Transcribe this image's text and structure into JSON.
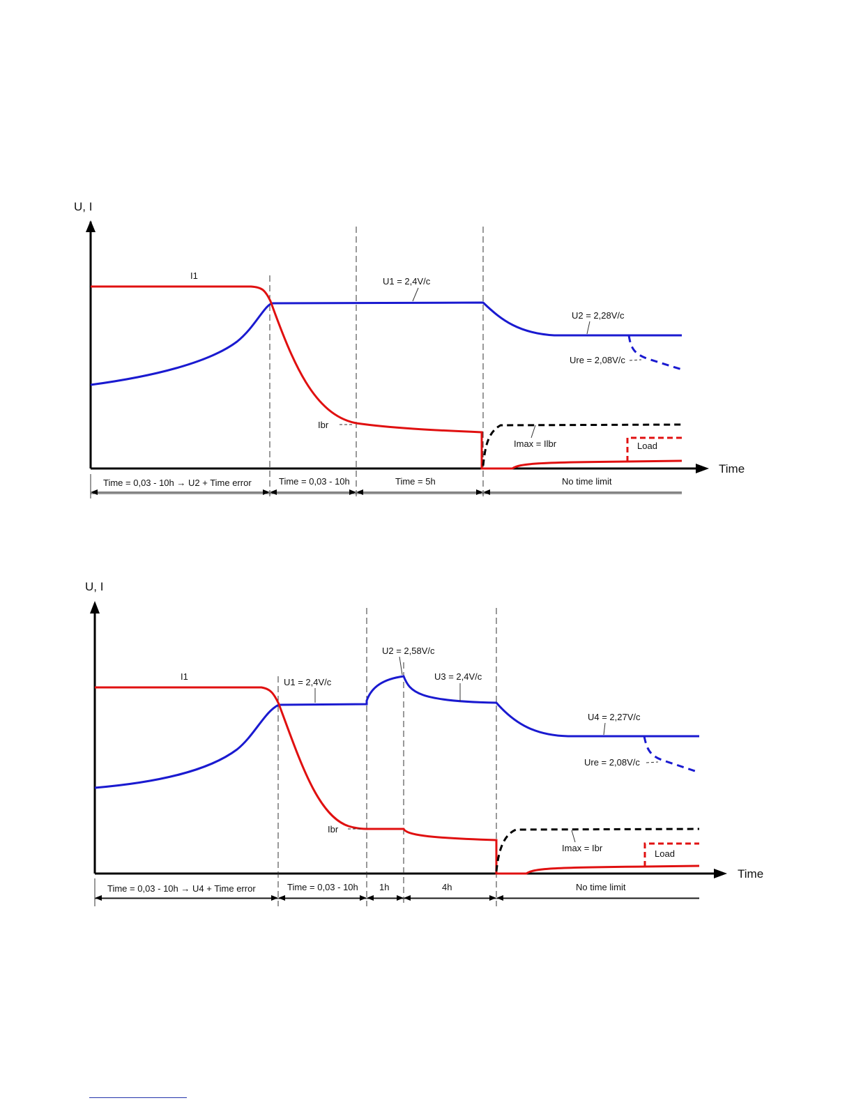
{
  "colors": {
    "current": "#e01010",
    "voltage": "#1a1ad0",
    "limit": "#000000",
    "axis": "#000000"
  },
  "diagram1": {
    "y_axis_label": "U, I",
    "x_axis_label": "Time",
    "labels": {
      "i1": "I1",
      "u1": "U1 = 2,4V/c",
      "u2": "U2 = 2,28V/c",
      "ure": "Ure = 2,08V/c",
      "ibr": "Ibr",
      "imax": "Imax = Ilbr",
      "load": "Load"
    },
    "phases": [
      "Time = 0,03 - 10h  →  U2 + Time error",
      "Time = 0,03 - 10h",
      "Time = 5h",
      "No time limit"
    ]
  },
  "diagram2": {
    "y_axis_label": "U, I",
    "x_axis_label": "Time",
    "labels": {
      "i1": "I1",
      "u1": "U1 = 2,4V/c",
      "u2": "U2 = 2,58V/c",
      "u3": "U3 = 2,4V/c",
      "u4": "U4 = 2,27V/c",
      "ure": "Ure = 2,08V/c",
      "ibr": "Ibr",
      "imax": "Imax = Ibr",
      "load": "Load"
    },
    "phases": [
      "Time = 0,03 - 10h  →  U4 + Time error",
      "Time = 0,03 - 10h",
      "1h",
      "4h",
      "No time limit"
    ]
  }
}
